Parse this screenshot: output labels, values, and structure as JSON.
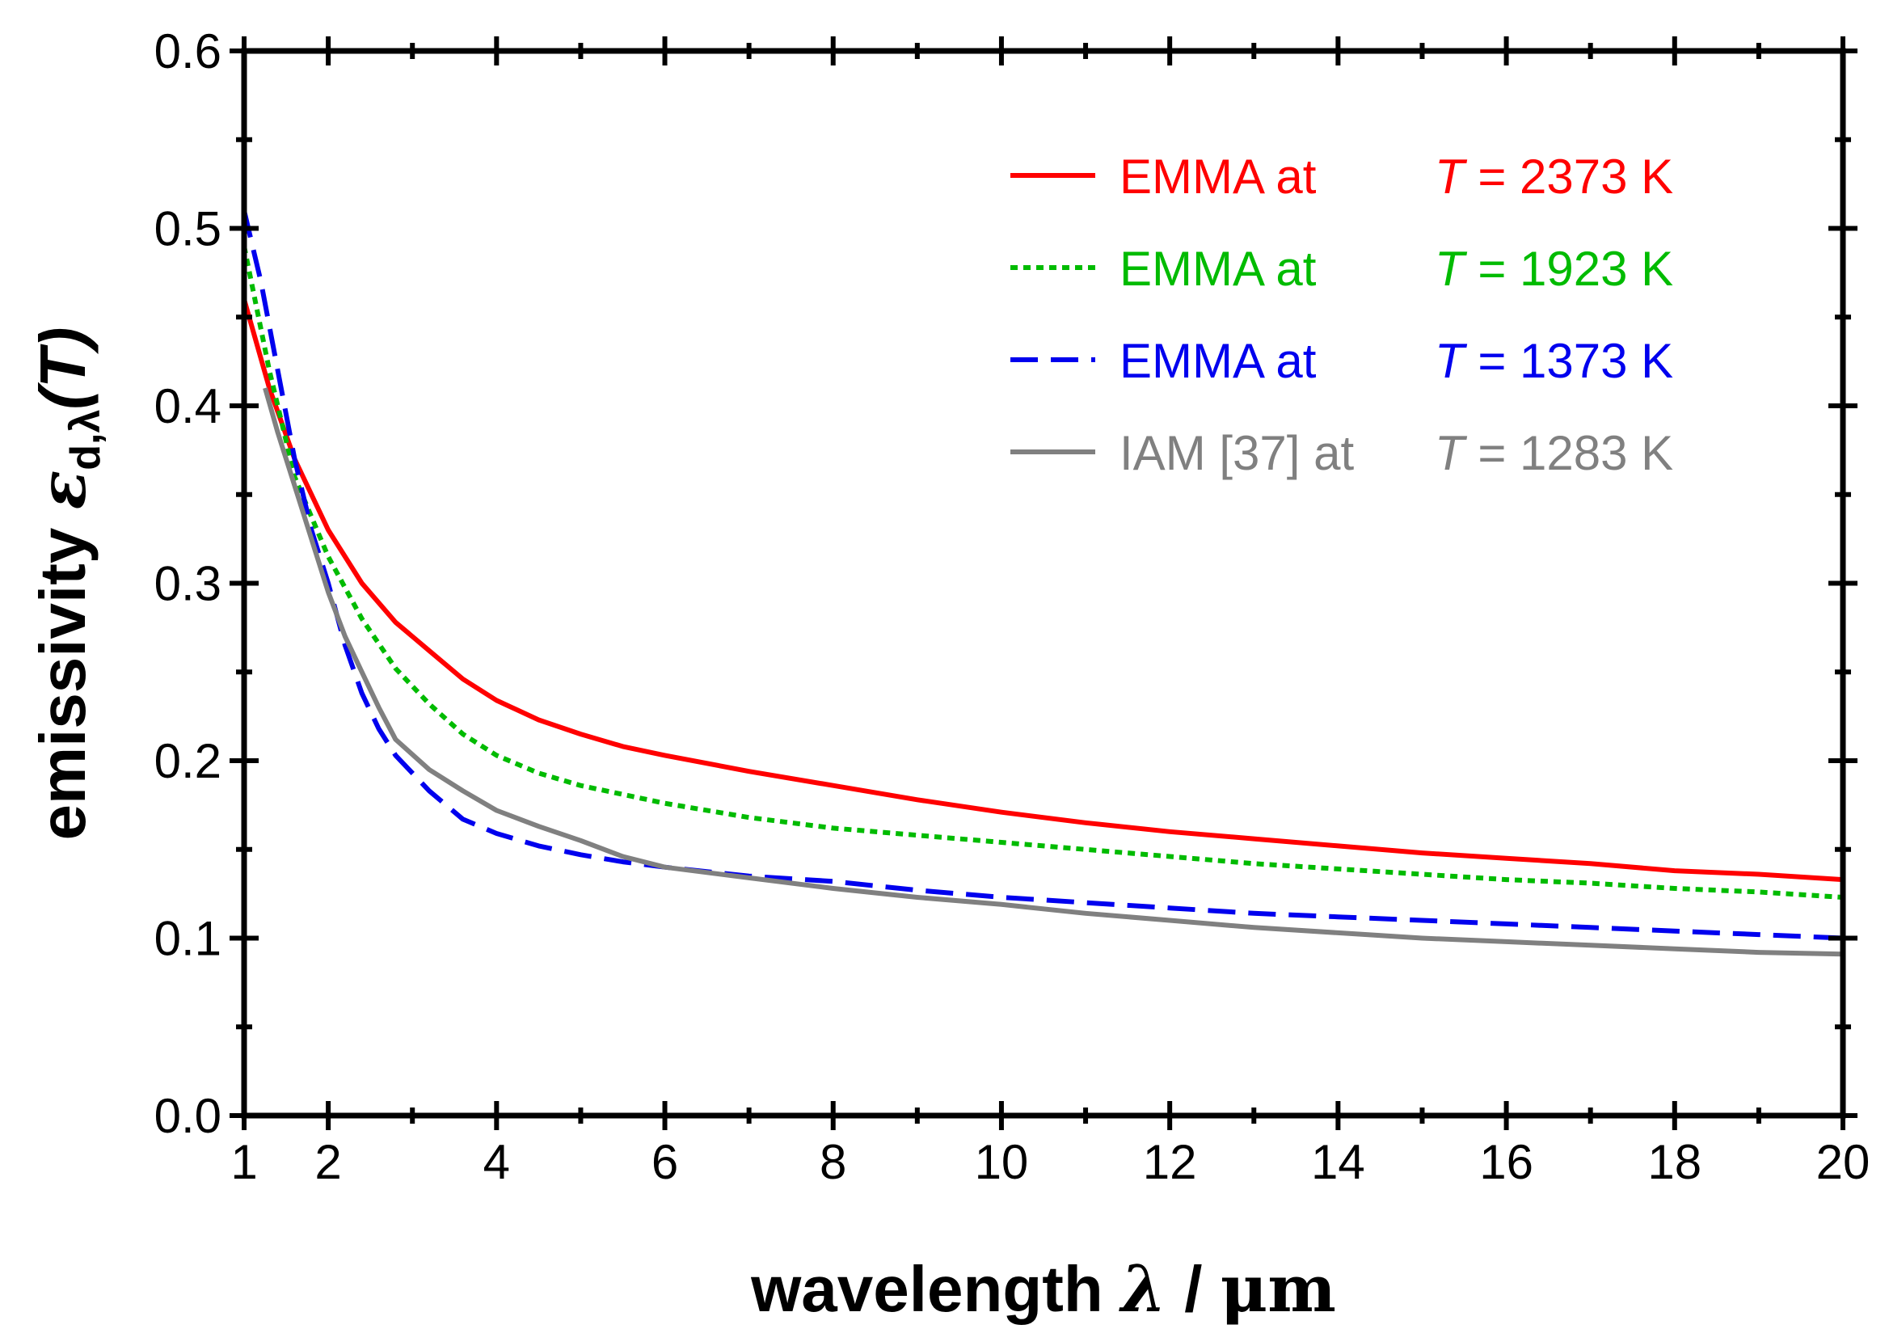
{
  "chart_data": {
    "type": "line",
    "title": "",
    "xlabel": {
      "prefix": "wavelength ",
      "symbol": "λ",
      "separator": " / ",
      "unit": "μm"
    },
    "ylabel": {
      "prefix": "emissivity  ",
      "symbol": "ε",
      "subscript": "d,λ",
      "argument": "(T)"
    },
    "xlim": [
      1,
      20
    ],
    "ylim": [
      0.0,
      0.6
    ],
    "x_ticks": [
      1,
      2,
      4,
      6,
      8,
      10,
      12,
      14,
      16,
      18,
      20
    ],
    "x_tick_labels": [
      "1",
      "2",
      "4",
      "6",
      "8",
      "10",
      "12",
      "14",
      "16",
      "18",
      "20"
    ],
    "x_minor_ticks": [
      3,
      5,
      7,
      9,
      11,
      13,
      15,
      17,
      19
    ],
    "y_ticks": [
      0.0,
      0.1,
      0.2,
      0.3,
      0.4,
      0.5,
      0.6
    ],
    "y_tick_labels": [
      "0.0",
      "0.1",
      "0.2",
      "0.3",
      "0.4",
      "0.5",
      "0.6"
    ],
    "y_minor_ticks": [
      0.05,
      0.15,
      0.25,
      0.35,
      0.45,
      0.55
    ],
    "grid": false,
    "legend_position": "top-right",
    "series": [
      {
        "name": "EMMA at T = 2373 K",
        "label_prefix": "EMMA at",
        "label_var": "T",
        "label_value": " = 2373 K",
        "color": "#ff0000",
        "style": "solid",
        "x": [
          1.0,
          1.3,
          1.6,
          2.0,
          2.4,
          2.8,
          3.2,
          3.6,
          4.0,
          4.5,
          5.0,
          5.5,
          6.0,
          7.0,
          8.0,
          9.0,
          10.0,
          11.0,
          12.0,
          13.0,
          14.0,
          15.0,
          16.0,
          17.0,
          18.0,
          19.0,
          20.0
        ],
        "y": [
          0.46,
          0.41,
          0.37,
          0.33,
          0.3,
          0.278,
          0.262,
          0.246,
          0.234,
          0.223,
          0.215,
          0.208,
          0.203,
          0.194,
          0.186,
          0.178,
          0.171,
          0.165,
          0.16,
          0.156,
          0.152,
          0.148,
          0.145,
          0.142,
          0.138,
          0.136,
          0.133
        ]
      },
      {
        "name": "EMMA at T = 1923 K",
        "label_prefix": "EMMA at",
        "label_var": "T",
        "label_value": " = 1923 K",
        "color": "#00bb00",
        "style": "dotted",
        "x": [
          1.0,
          1.3,
          1.6,
          2.0,
          2.4,
          2.8,
          3.2,
          3.6,
          4.0,
          4.5,
          5.0,
          5.5,
          6.0,
          7.0,
          8.0,
          9.0,
          10.0,
          11.0,
          12.0,
          13.0,
          14.0,
          15.0,
          16.0,
          17.0,
          18.0,
          19.0,
          20.0
        ],
        "y": [
          0.49,
          0.42,
          0.36,
          0.315,
          0.28,
          0.252,
          0.232,
          0.215,
          0.203,
          0.193,
          0.186,
          0.181,
          0.176,
          0.168,
          0.162,
          0.158,
          0.154,
          0.15,
          0.146,
          0.142,
          0.139,
          0.136,
          0.133,
          0.131,
          0.128,
          0.126,
          0.123
        ]
      },
      {
        "name": "EMMA at T = 1373 K",
        "label_prefix": "EMMA at",
        "label_var": "T",
        "label_value": " = 1373 K",
        "color": "#0000ee",
        "style": "dashed",
        "x": [
          1.0,
          1.2,
          1.4,
          1.6,
          1.8,
          2.0,
          2.2,
          2.4,
          2.6,
          2.8,
          3.2,
          3.6,
          4.0,
          4.5,
          5.0,
          5.5,
          6.0,
          7.0,
          8.0,
          9.0,
          10.0,
          11.0,
          12.0,
          13.0,
          14.0,
          15.0,
          16.0,
          17.0,
          18.0,
          19.0,
          20.0
        ],
        "y": [
          0.51,
          0.47,
          0.42,
          0.37,
          0.33,
          0.3,
          0.265,
          0.238,
          0.218,
          0.203,
          0.183,
          0.167,
          0.159,
          0.152,
          0.147,
          0.143,
          0.14,
          0.135,
          0.132,
          0.127,
          0.123,
          0.12,
          0.117,
          0.114,
          0.112,
          0.11,
          0.108,
          0.106,
          0.104,
          0.102,
          0.1
        ]
      },
      {
        "name": "IAM [37] at T = 1283 K",
        "label_prefix": "IAM [37] at",
        "label_var": "T",
        "label_value": " = 1283 K",
        "color": "#808080",
        "style": "solid",
        "x": [
          1.25,
          1.4,
          1.6,
          1.8,
          2.0,
          2.2,
          2.4,
          2.6,
          2.8,
          3.2,
          3.6,
          4.0,
          4.5,
          5.0,
          5.5,
          6.0,
          7.0,
          8.0,
          9.0,
          10.0,
          11.0,
          12.0,
          13.0,
          14.0,
          15.0,
          16.0,
          17.0,
          18.0,
          19.0,
          20.0
        ],
        "y": [
          0.41,
          0.385,
          0.355,
          0.325,
          0.295,
          0.27,
          0.25,
          0.23,
          0.212,
          0.195,
          0.183,
          0.172,
          0.163,
          0.155,
          0.146,
          0.14,
          0.134,
          0.128,
          0.123,
          0.119,
          0.114,
          0.11,
          0.106,
          0.103,
          0.1,
          0.098,
          0.096,
          0.094,
          0.092,
          0.091
        ]
      }
    ]
  }
}
